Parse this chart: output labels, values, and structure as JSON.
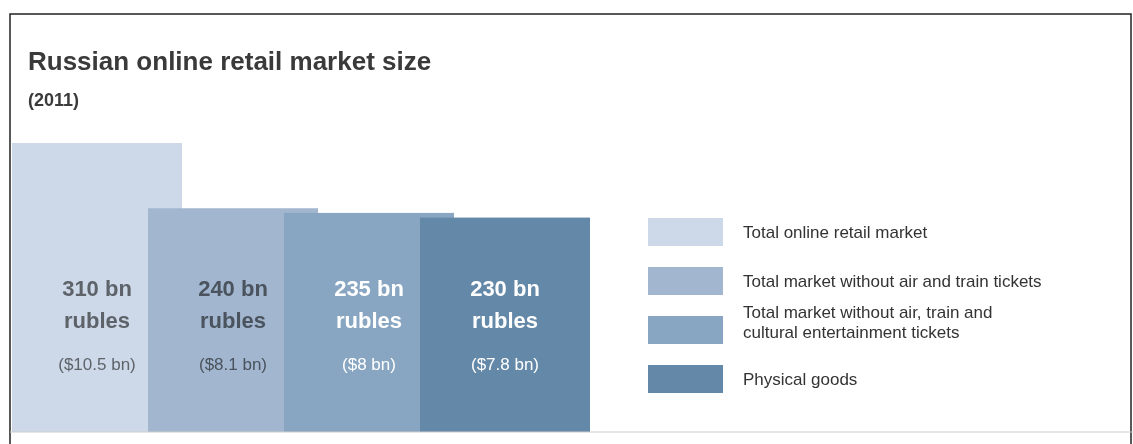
{
  "chart_data": {
    "type": "bar",
    "title": "Russian online retail market size",
    "subtitle": "(2011)",
    "categories": [
      null,
      null,
      null,
      null
    ],
    "stacked": true,
    "series": [
      {
        "name": "Total online retail market",
        "color": "#cdd9e8",
        "values": [
          310,
          null,
          null,
          null
        ],
        "value_labels": [
          "310 bn rubles",
          null,
          null,
          null
        ]
      },
      {
        "name": "Total market without air and train tickets",
        "color": "#a2b7cf",
        "values": [
          null,
          240,
          null,
          null
        ],
        "value_labels": [
          null,
          "240 bn rubles",
          null,
          null
        ]
      },
      {
        "name": "Total market without air, train and cultural entertainment tickets",
        "color": "#88a6c2",
        "values": [
          null,
          null,
          235,
          null
        ],
        "value_labels": [
          null,
          null,
          "235 bn rubles",
          null
        ]
      },
      {
        "name": "Physical goods",
        "color": "#6488a7",
        "values": [
          null,
          null,
          null,
          230
        ],
        "value_labels": [
          null,
          null,
          null,
          "230 bn rubles"
        ]
      }
    ],
    "annotations": [
      "($10.5 bn)",
      "($8.1 bn)",
      "($8 bn)",
      "($7.8 bn)"
    ],
    "legend": "right"
  }
}
